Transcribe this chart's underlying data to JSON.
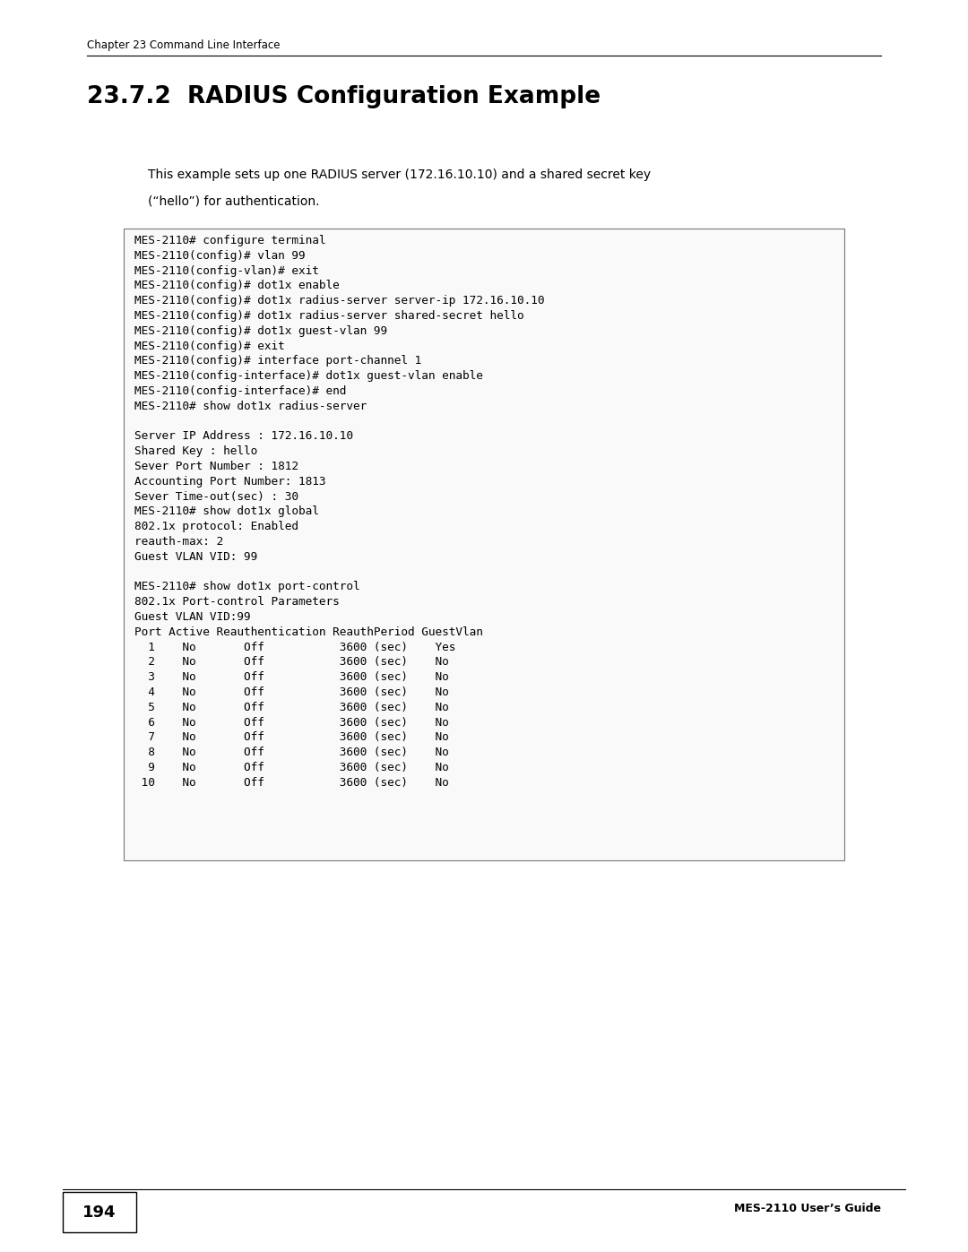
{
  "page_width": 10.8,
  "page_height": 13.97,
  "background_color": "#ffffff",
  "header_text": "Chapter 23 Command Line Interface",
  "header_font_size": 8.5,
  "title": "23.7.2  RADIUS Configuration Example",
  "title_font_size": 19,
  "intro_line1": "This example sets up one RADIUS server (172.16.10.10) and a shared secret key",
  "intro_line2": "(“hello”) for authentication.",
  "intro_font_size": 10.0,
  "code_font_size": 9.2,
  "code_text": "MES-2110# configure terminal\nMES-2110(config)# vlan 99\nMES-2110(config-vlan)# exit\nMES-2110(config)# dot1x enable\nMES-2110(config)# dot1x radius-server server-ip 172.16.10.10\nMES-2110(config)# dot1x radius-server shared-secret hello\nMES-2110(config)# dot1x guest-vlan 99\nMES-2110(config)# exit\nMES-2110(config)# interface port-channel 1\nMES-2110(config-interface)# dot1x guest-vlan enable\nMES-2110(config-interface)# end\nMES-2110# show dot1x radius-server\n\nServer IP Address : 172.16.10.10\nShared Key : hello\nSever Port Number : 1812\nAccounting Port Number: 1813\nSever Time-out(sec) : 30\nMES-2110# show dot1x global\n802.1x protocol: Enabled\nreauth-max: 2\nGuest VLAN VID: 99\n\nMES-2110# show dot1x port-control\n802.1x Port-control Parameters\nGuest VLAN VID:99\nPort Active Reauthentication ReauthPeriod GuestVlan\n  1    No       Off           3600 (sec)    Yes\n  2    No       Off           3600 (sec)    No\n  3    No       Off           3600 (sec)    No\n  4    No       Off           3600 (sec)    No\n  5    No       Off           3600 (sec)    No\n  6    No       Off           3600 (sec)    No\n  7    No       Off           3600 (sec)    No\n  8    No       Off           3600 (sec)    No\n  9    No       Off           3600 (sec)    No\n 10    No       Off           3600 (sec)    No",
  "footer_page_num": "194",
  "footer_title": "MES-2110 User’s Guide",
  "footer_font_size": 9
}
